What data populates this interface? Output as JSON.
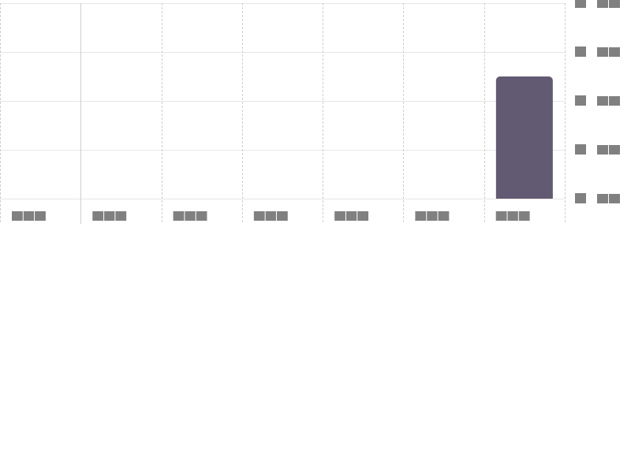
{
  "chart_data": {
    "type": "bar",
    "title": "",
    "xlabel": "",
    "ylabel": "",
    "categories": [
      "",
      "",
      "",
      "",
      "",
      "",
      ""
    ],
    "series": [
      {
        "values": [
          0,
          0,
          0,
          0,
          0,
          0,
          2.5
        ]
      }
    ],
    "ylim": [
      0,
      4
    ],
    "yticks": [
      0,
      1,
      2,
      3,
      4
    ],
    "y_axis_side": "right",
    "grid": true,
    "legend": "none",
    "bar_color": "#625a72",
    "grid_color": "#e6e6e6",
    "divider_color": "#cfcfcf",
    "placeholder_color": "#808080"
  }
}
